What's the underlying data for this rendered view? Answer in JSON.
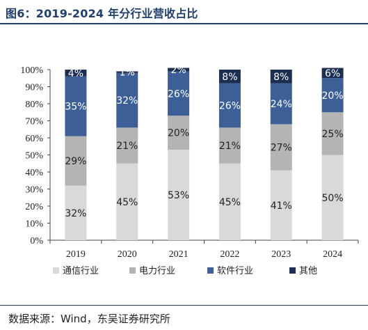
{
  "header": {
    "title": "图6：2019-2024 年分行业营收占比"
  },
  "footer": {
    "source": "数据来源：Wind，东吴证券研究所"
  },
  "chart_data": {
    "type": "bar",
    "stacked": true,
    "categories": [
      "2019",
      "2020",
      "2021",
      "2022",
      "2023",
      "2024"
    ],
    "series": [
      {
        "name": "通信行业",
        "values": [
          32,
          45,
          53,
          45,
          41,
          50
        ],
        "labels": [
          "32%",
          "45%",
          "53%",
          "45%",
          "41%",
          "50%"
        ],
        "color": "#d9d9d9",
        "label_color": "#222222"
      },
      {
        "name": "电力行业",
        "values": [
          29,
          21,
          20,
          21,
          27,
          25
        ],
        "labels": [
          "29%",
          "21%",
          "20%",
          "21%",
          "27%",
          "25%"
        ],
        "color": "#b4b4b4",
        "label_color": "#222222"
      },
      {
        "name": "软件行业",
        "values": [
          35,
          32,
          26,
          26,
          24,
          20
        ],
        "labels": [
          "35%",
          "32%",
          "26%",
          "26%",
          "24%",
          "20%"
        ],
        "color": "#3d5f98",
        "label_color": "#ffffff"
      },
      {
        "name": "其他",
        "values": [
          4,
          1,
          2,
          8,
          8,
          6
        ],
        "labels": [
          "4%",
          "1%",
          "2%",
          "8%",
          "8%",
          "6%"
        ],
        "color": "#1c2f52",
        "label_color": "#ffffff"
      }
    ],
    "y_ticks": [
      "0%",
      "10%",
      "20%",
      "30%",
      "40%",
      "50%",
      "60%",
      "70%",
      "80%",
      "90%",
      "100%"
    ],
    "ylim": [
      0,
      100
    ],
    "legend_position": "bottom",
    "grid": false
  }
}
